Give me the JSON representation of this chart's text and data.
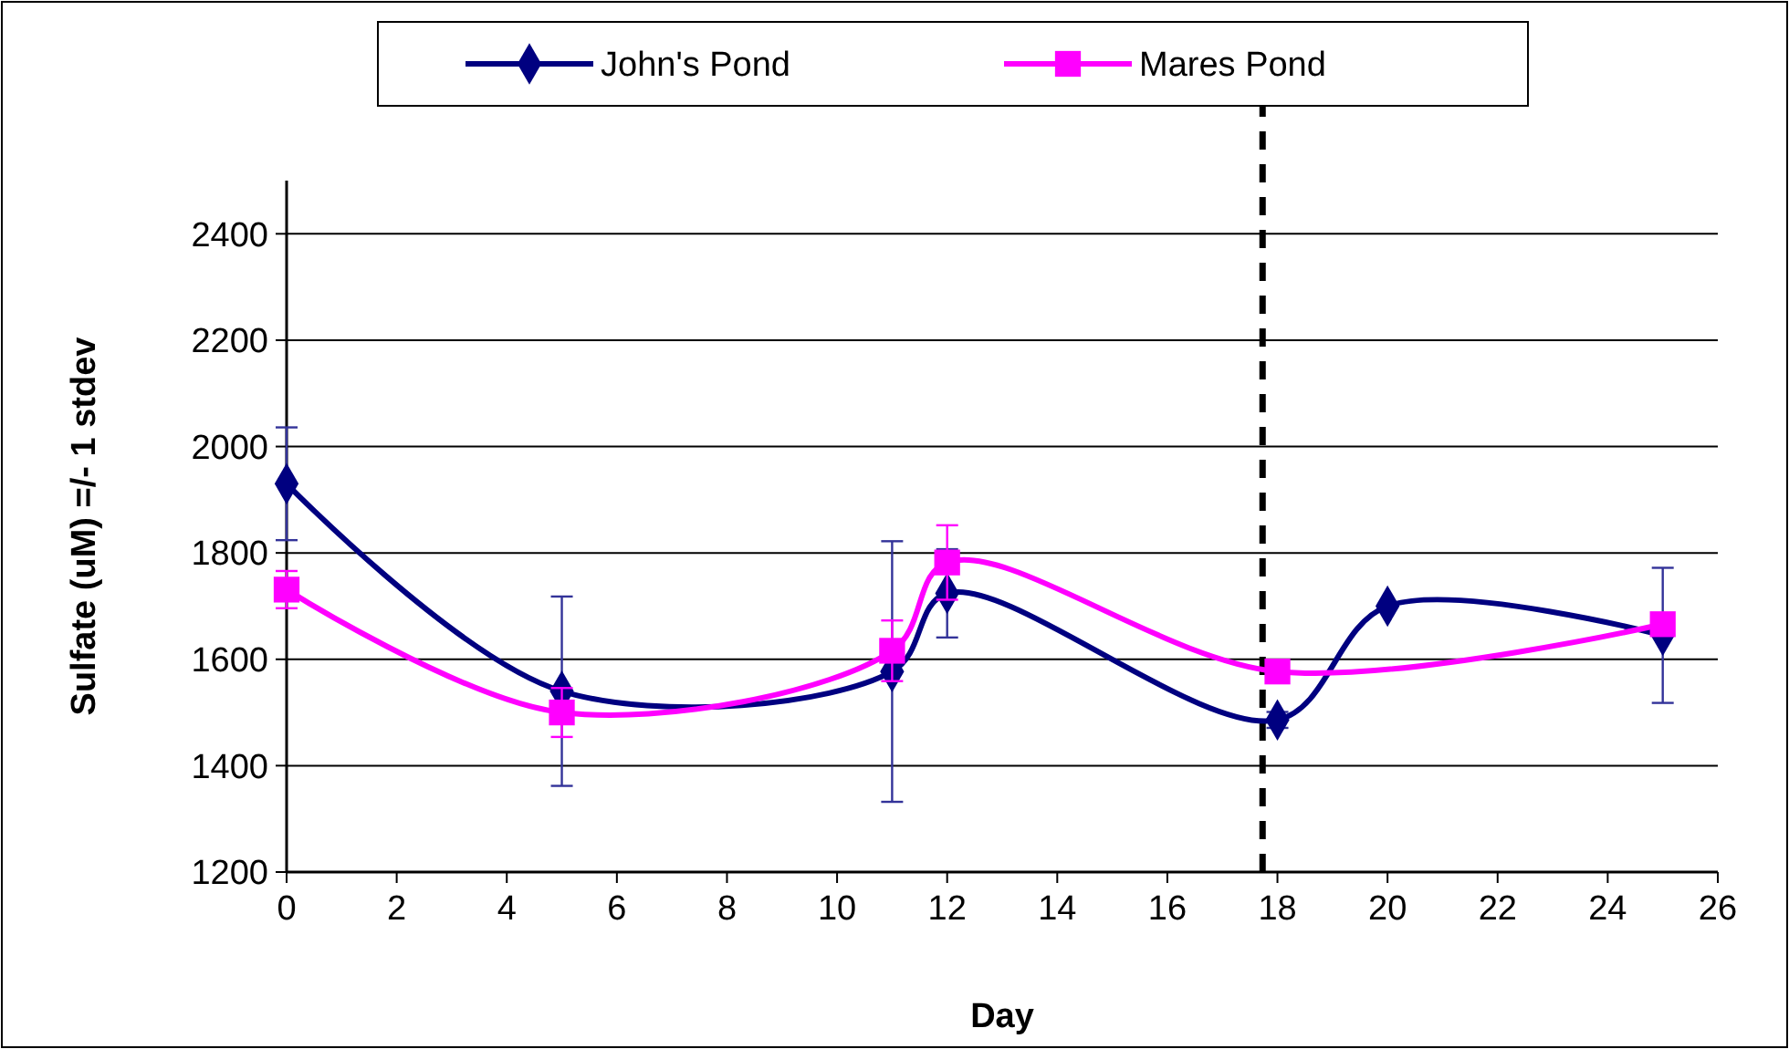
{
  "chart_data": {
    "type": "line",
    "xlabel": "Day",
    "ylabel": "Sulfate (uM) =/- 1 stdev",
    "xlim": [
      0,
      26
    ],
    "xticks": [
      0,
      2,
      4,
      6,
      8,
      10,
      12,
      14,
      16,
      18,
      20,
      22,
      24,
      26
    ],
    "ylim": [
      1200,
      2500
    ],
    "yticks": [
      1200,
      1400,
      1600,
      1800,
      2000,
      2200,
      2400
    ],
    "grid": "y",
    "legend": "top",
    "line_style": "solid",
    "series": [
      {
        "name": "John's Pond",
        "color": "#000080",
        "marker": "diamond",
        "x": [
          0,
          5,
          11,
          12,
          18,
          20,
          25
        ],
        "values": [
          1930,
          1540,
          1577,
          1724,
          1486,
          1700,
          1645
        ],
        "errors": [
          106,
          178,
          245,
          83,
          15,
          null,
          127
        ]
      },
      {
        "name": "Mares Pond",
        "color": "#ff00ff",
        "marker": "square",
        "x": [
          0,
          5,
          11,
          12,
          18,
          25
        ],
        "values": [
          1731,
          1500,
          1616,
          1782,
          1577,
          1666
        ],
        "errors": [
          35,
          46,
          57,
          70,
          null,
          null
        ]
      }
    ],
    "ref_lines": [
      {
        "axis": "x",
        "value": 17.73,
        "color": "#000000",
        "line_style": "dashed"
      }
    ]
  }
}
